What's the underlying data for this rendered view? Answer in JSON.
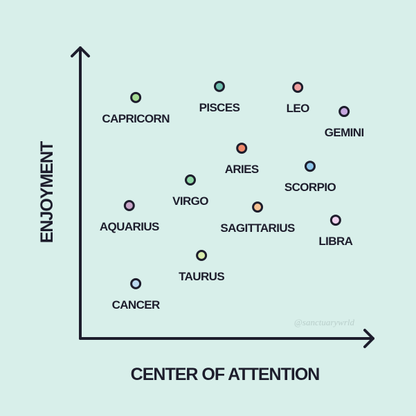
{
  "chart_data": {
    "type": "scatter",
    "xlabel": "CENTER OF ATTENTION",
    "ylabel": "ENJOYMENT",
    "xlim": [
      0,
      100
    ],
    "ylim": [
      0,
      100
    ],
    "grid": false,
    "watermark": "@sanctuarywrld",
    "colors": {
      "background": "#d8efea",
      "axis": "#1d1d2c"
    },
    "points": [
      {
        "label": "CAPRICORN",
        "x": 18.9,
        "y": 82.7,
        "color": "#a6dc94"
      },
      {
        "label": "PISCES",
        "x": 47.4,
        "y": 86.5,
        "color": "#6fbfaf"
      },
      {
        "label": "LEO",
        "x": 74.1,
        "y": 86.2,
        "color": "#f0a0a0"
      },
      {
        "label": "GEMINI",
        "x": 89.9,
        "y": 77.9,
        "color": "#c7a8e0"
      },
      {
        "label": "ARIES",
        "x": 55.0,
        "y": 65.3,
        "color": "#f08a6c"
      },
      {
        "label": "SCORPIO",
        "x": 78.3,
        "y": 59.1,
        "color": "#8ec6ea"
      },
      {
        "label": "VIRGO",
        "x": 37.5,
        "y": 54.4,
        "color": "#8fd6a6"
      },
      {
        "label": "AQUARIUS",
        "x": 16.7,
        "y": 45.6,
        "color": "#c9a6c9"
      },
      {
        "label": "SAGITTARIUS",
        "x": 60.4,
        "y": 45.1,
        "color": "#f7c294"
      },
      {
        "label": "LIBRA",
        "x": 87.0,
        "y": 40.6,
        "color": "#f1d3ef"
      },
      {
        "label": "TAURUS",
        "x": 41.3,
        "y": 28.5,
        "color": "#d9ecac"
      },
      {
        "label": "CANCER",
        "x": 18.9,
        "y": 18.8,
        "color": "#bcd9f0"
      }
    ]
  }
}
